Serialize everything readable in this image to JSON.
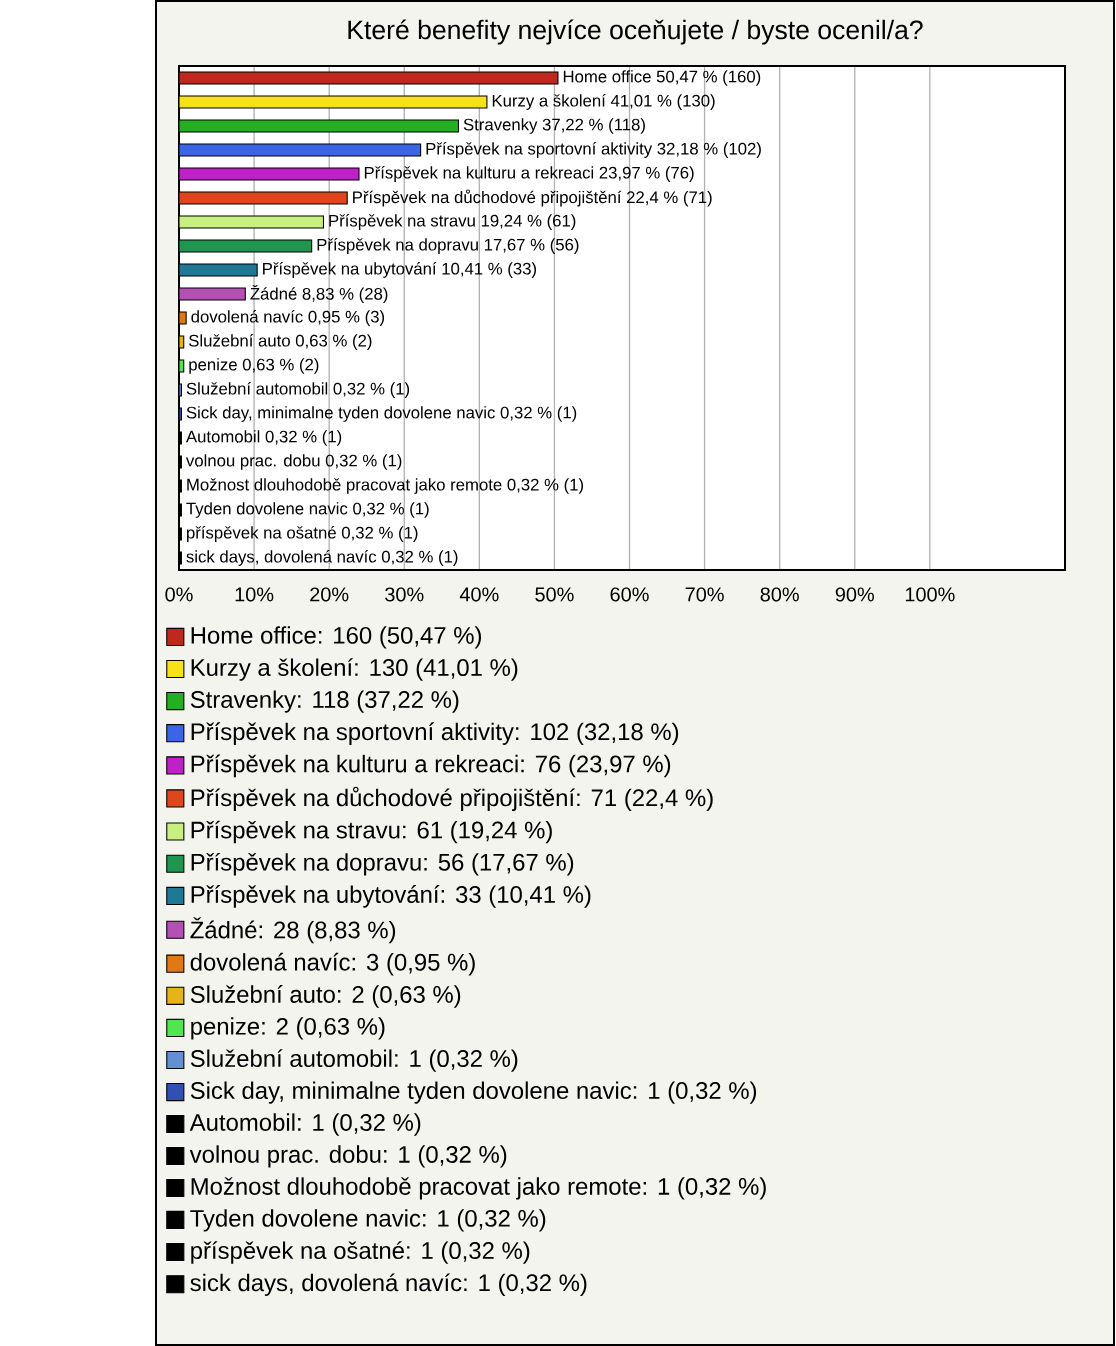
{
  "chart_data": {
    "type": "bar",
    "orientation": "horizontal",
    "title": "Které benefity nejvíce oceňujete / byste ocenil/a?",
    "categories": [
      null,
      null,
      null,
      null,
      null,
      null,
      null,
      null,
      null,
      null,
      null,
      null,
      null,
      null,
      null,
      null,
      null,
      null,
      null,
      null,
      null
    ],
    "xlim": [
      0,
      118
    ],
    "xticks": [
      {
        "value": 0,
        "label": "0%"
      },
      {
        "value": 10,
        "label": "10%"
      },
      {
        "value": 20,
        "label": "20%"
      },
      {
        "value": 30,
        "label": "30%"
      },
      {
        "value": 40,
        "label": "40%"
      },
      {
        "value": 50,
        "label": "50%"
      },
      {
        "value": 60,
        "label": "60%"
      },
      {
        "value": 70,
        "label": "70%"
      },
      {
        "value": 80,
        "label": "80%"
      },
      {
        "value": 90,
        "label": "90%"
      },
      {
        "value": 100,
        "label": "100%"
      }
    ],
    "grid": "x",
    "legend": "bottom",
    "tick_labels": "x",
    "series": [
      {
        "name": "Home office: 160 (50,47 %)",
        "color": "#c0281e",
        "values": [
          50.47,
          null,
          null,
          null,
          null,
          null,
          null,
          null,
          null,
          null,
          null,
          null,
          null,
          null,
          null,
          null,
          null,
          null,
          null,
          null,
          null
        ],
        "value_labels": [
          "Home office 50,47 % (160)",
          null,
          null,
          null,
          null,
          null,
          null,
          null,
          null,
          null,
          null,
          null,
          null,
          null,
          null,
          null,
          null,
          null,
          null,
          null,
          null
        ]
      },
      {
        "name": "Kurzy a školení: 130 (41,01 %)",
        "color": "#f5e21a",
        "values": [
          null,
          41.01,
          null,
          null,
          null,
          null,
          null,
          null,
          null,
          null,
          null,
          null,
          null,
          null,
          null,
          null,
          null,
          null,
          null,
          null,
          null
        ],
        "value_labels": [
          null,
          "Kurzy a školení 41,01 % (130)",
          null,
          null,
          null,
          null,
          null,
          null,
          null,
          null,
          null,
          null,
          null,
          null,
          null,
          null,
          null,
          null,
          null,
          null,
          null
        ]
      },
      {
        "name": "Stravenky: 118 (37,22 %)",
        "color": "#22b022",
        "values": [
          null,
          null,
          37.22,
          null,
          null,
          null,
          null,
          null,
          null,
          null,
          null,
          null,
          null,
          null,
          null,
          null,
          null,
          null,
          null,
          null,
          null
        ],
        "value_labels": [
          null,
          null,
          "Stravenky 37,22 % (118)",
          null,
          null,
          null,
          null,
          null,
          null,
          null,
          null,
          null,
          null,
          null,
          null,
          null,
          null,
          null,
          null,
          null,
          null
        ]
      },
      {
        "name": "Příspěvek na sportovní aktivity: 102 (32,18 %)",
        "color": "#3c64e6",
        "values": [
          null,
          null,
          null,
          32.18,
          null,
          null,
          null,
          null,
          null,
          null,
          null,
          null,
          null,
          null,
          null,
          null,
          null,
          null,
          null,
          null,
          null
        ],
        "value_labels": [
          null,
          null,
          null,
          "Příspěvek na sportovní aktivity 32,18 % (102)",
          null,
          null,
          null,
          null,
          null,
          null,
          null,
          null,
          null,
          null,
          null,
          null,
          null,
          null,
          null,
          null,
          null
        ]
      },
      {
        "name": "Příspěvek na kulturu a rekreaci: 76 (23,97 %)",
        "color": "#c020c8",
        "values": [
          null,
          null,
          null,
          null,
          23.97,
          null,
          null,
          null,
          null,
          null,
          null,
          null,
          null,
          null,
          null,
          null,
          null,
          null,
          null,
          null,
          null
        ],
        "value_labels": [
          null,
          null,
          null,
          null,
          "Příspěvek na kulturu a rekreaci 23,97 % (76)",
          null,
          null,
          null,
          null,
          null,
          null,
          null,
          null,
          null,
          null,
          null,
          null,
          null,
          null,
          null,
          null
        ]
      },
      {
        "name": "Příspěvek na důchodové připojištění: 71 (22,4 %)",
        "color": "#e0461e",
        "values": [
          null,
          null,
          null,
          null,
          null,
          22.4,
          null,
          null,
          null,
          null,
          null,
          null,
          null,
          null,
          null,
          null,
          null,
          null,
          null,
          null,
          null
        ],
        "value_labels": [
          null,
          null,
          null,
          null,
          null,
          "Příspěvek na důchodové připojištění 22,4 % (71)",
          null,
          null,
          null,
          null,
          null,
          null,
          null,
          null,
          null,
          null,
          null,
          null,
          null,
          null,
          null
        ]
      },
      {
        "name": "Příspěvek na stravu: 61 (19,24 %)",
        "color": "#c8f080",
        "values": [
          null,
          null,
          null,
          null,
          null,
          null,
          19.24,
          null,
          null,
          null,
          null,
          null,
          null,
          null,
          null,
          null,
          null,
          null,
          null,
          null,
          null
        ],
        "value_labels": [
          null,
          null,
          null,
          null,
          null,
          null,
          "Příspěvek na stravu 19,24 % (61)",
          null,
          null,
          null,
          null,
          null,
          null,
          null,
          null,
          null,
          null,
          null,
          null,
          null,
          null
        ]
      },
      {
        "name": "Příspěvek na dopravu: 56 (17,67 %)",
        "color": "#1e9650",
        "values": [
          null,
          null,
          null,
          null,
          null,
          null,
          null,
          17.67,
          null,
          null,
          null,
          null,
          null,
          null,
          null,
          null,
          null,
          null,
          null,
          null,
          null
        ],
        "value_labels": [
          null,
          null,
          null,
          null,
          null,
          null,
          null,
          "Příspěvek na dopravu 17,67 % (56)",
          null,
          null,
          null,
          null,
          null,
          null,
          null,
          null,
          null,
          null,
          null,
          null,
          null
        ]
      },
      {
        "name": "Příspěvek na ubytování: 33 (10,41 %)",
        "color": "#1e7896",
        "values": [
          null,
          null,
          null,
          null,
          null,
          null,
          null,
          null,
          10.41,
          null,
          null,
          null,
          null,
          null,
          null,
          null,
          null,
          null,
          null,
          null,
          null
        ],
        "value_labels": [
          null,
          null,
          null,
          null,
          null,
          null,
          null,
          null,
          "Příspěvek na ubytování 10,41 % (33)",
          null,
          null,
          null,
          null,
          null,
          null,
          null,
          null,
          null,
          null,
          null,
          null
        ]
      },
      {
        "name": "Žádné: 28 (8,83 %)",
        "color": "#b450b4",
        "values": [
          null,
          null,
          null,
          null,
          null,
          null,
          null,
          null,
          null,
          8.83,
          null,
          null,
          null,
          null,
          null,
          null,
          null,
          null,
          null,
          null,
          null
        ],
        "value_labels": [
          null,
          null,
          null,
          null,
          null,
          null,
          null,
          null,
          null,
          "Žádné 8,83 % (28)",
          null,
          null,
          null,
          null,
          null,
          null,
          null,
          null,
          null,
          null,
          null
        ]
      },
      {
        "name": "dovolená navíc: 3 (0,95 %)",
        "color": "#e07814",
        "values": [
          null,
          null,
          null,
          null,
          null,
          null,
          null,
          null,
          null,
          null,
          0.95,
          null,
          null,
          null,
          null,
          null,
          null,
          null,
          null,
          null,
          null
        ],
        "value_labels": [
          null,
          null,
          null,
          null,
          null,
          null,
          null,
          null,
          null,
          null,
          "dovolená navíc 0,95 % (3)",
          null,
          null,
          null,
          null,
          null,
          null,
          null,
          null,
          null,
          null
        ]
      },
      {
        "name": "Služební auto: 2 (0,63 %)",
        "color": "#e6b414",
        "values": [
          null,
          null,
          null,
          null,
          null,
          null,
          null,
          null,
          null,
          null,
          null,
          0.63,
          null,
          null,
          null,
          null,
          null,
          null,
          null,
          null,
          null
        ],
        "value_labels": [
          null,
          null,
          null,
          null,
          null,
          null,
          null,
          null,
          null,
          null,
          null,
          "Služební auto 0,63 % (2)",
          null,
          null,
          null,
          null,
          null,
          null,
          null,
          null,
          null
        ]
      },
      {
        "name": "penize: 2 (0,63 %)",
        "color": "#50e650",
        "values": [
          null,
          null,
          null,
          null,
          null,
          null,
          null,
          null,
          null,
          null,
          null,
          null,
          0.63,
          null,
          null,
          null,
          null,
          null,
          null,
          null,
          null
        ],
        "value_labels": [
          null,
          null,
          null,
          null,
          null,
          null,
          null,
          null,
          null,
          null,
          null,
          null,
          "penize 0,63 % (2)",
          null,
          null,
          null,
          null,
          null,
          null,
          null,
          null
        ]
      },
      {
        "name": "Služební automobil: 1 (0,32 %)",
        "color": "#6490d2",
        "values": [
          null,
          null,
          null,
          null,
          null,
          null,
          null,
          null,
          null,
          null,
          null,
          null,
          null,
          0.32,
          null,
          null,
          null,
          null,
          null,
          null,
          null
        ],
        "value_labels": [
          null,
          null,
          null,
          null,
          null,
          null,
          null,
          null,
          null,
          null,
          null,
          null,
          null,
          "Služební automobil 0,32 % (1)",
          null,
          null,
          null,
          null,
          null,
          null,
          null
        ]
      },
      {
        "name": "Sick day, minimalne tyden dovolene navic: 1 (0,32 %)",
        "color": "#3250b4",
        "values": [
          null,
          null,
          null,
          null,
          null,
          null,
          null,
          null,
          null,
          null,
          null,
          null,
          null,
          null,
          0.32,
          null,
          null,
          null,
          null,
          null,
          null
        ],
        "value_labels": [
          null,
          null,
          null,
          null,
          null,
          null,
          null,
          null,
          null,
          null,
          null,
          null,
          null,
          null,
          "Sick day, minimalne tyden dovolene navic 0,32 % (1)",
          null,
          null,
          null,
          null,
          null,
          null
        ]
      },
      {
        "name": "Automobil: 1 (0,32 %)",
        "color": "#000000",
        "values": [
          null,
          null,
          null,
          null,
          null,
          null,
          null,
          null,
          null,
          null,
          null,
          null,
          null,
          null,
          null,
          0.32,
          null,
          null,
          null,
          null,
          null
        ],
        "value_labels": [
          null,
          null,
          null,
          null,
          null,
          null,
          null,
          null,
          null,
          null,
          null,
          null,
          null,
          null,
          null,
          "Automobil 0,32 % (1)",
          null,
          null,
          null,
          null,
          null
        ]
      },
      {
        "name": "volnou prac. dobu: 1 (0,32 %)",
        "color": "#000000",
        "values": [
          null,
          null,
          null,
          null,
          null,
          null,
          null,
          null,
          null,
          null,
          null,
          null,
          null,
          null,
          null,
          null,
          0.32,
          null,
          null,
          null,
          null
        ],
        "value_labels": [
          null,
          null,
          null,
          null,
          null,
          null,
          null,
          null,
          null,
          null,
          null,
          null,
          null,
          null,
          null,
          null,
          "volnou prac. dobu 0,32 % (1)",
          null,
          null,
          null,
          null
        ]
      },
      {
        "name": "Možnost dlouhodobě pracovat jako remote: 1 (0,32 %)",
        "color": "#000000",
        "values": [
          null,
          null,
          null,
          null,
          null,
          null,
          null,
          null,
          null,
          null,
          null,
          null,
          null,
          null,
          null,
          null,
          null,
          0.32,
          null,
          null,
          null
        ],
        "value_labels": [
          null,
          null,
          null,
          null,
          null,
          null,
          null,
          null,
          null,
          null,
          null,
          null,
          null,
          null,
          null,
          null,
          null,
          "Možnost dlouhodobě pracovat jako remote 0,32 % (1)",
          null,
          null,
          null
        ]
      },
      {
        "name": "Tyden dovolene navic: 1 (0,32 %)",
        "color": "#000000",
        "values": [
          null,
          null,
          null,
          null,
          null,
          null,
          null,
          null,
          null,
          null,
          null,
          null,
          null,
          null,
          null,
          null,
          null,
          null,
          0.32,
          null,
          null
        ],
        "value_labels": [
          null,
          null,
          null,
          null,
          null,
          null,
          null,
          null,
          null,
          null,
          null,
          null,
          null,
          null,
          null,
          null,
          null,
          null,
          "Tyden dovolene navic 0,32 % (1)",
          null,
          null
        ]
      },
      {
        "name": "příspěvek na ošatné: 1 (0,32 %)",
        "color": "#000000",
        "values": [
          null,
          null,
          null,
          null,
          null,
          null,
          null,
          null,
          null,
          null,
          null,
          null,
          null,
          null,
          null,
          null,
          null,
          null,
          null,
          0.32,
          null
        ],
        "value_labels": [
          null,
          null,
          null,
          null,
          null,
          null,
          null,
          null,
          null,
          null,
          null,
          null,
          null,
          null,
          null,
          null,
          null,
          null,
          null,
          "příspěvek na ošatné 0,32 % (1)",
          null
        ]
      },
      {
        "name": "sick days, dovolená navíc: 1 (0,32 %)",
        "color": "#000000",
        "values": [
          null,
          null,
          null,
          null,
          null,
          null,
          null,
          null,
          null,
          null,
          null,
          null,
          null,
          null,
          null,
          null,
          null,
          null,
          null,
          null,
          0.32
        ],
        "value_labels": [
          null,
          null,
          null,
          null,
          null,
          null,
          null,
          null,
          null,
          null,
          null,
          null,
          null,
          null,
          null,
          null,
          null,
          null,
          null,
          null,
          "sick days, dovolená navíc 0,32 % (1)"
        ]
      }
    ]
  }
}
